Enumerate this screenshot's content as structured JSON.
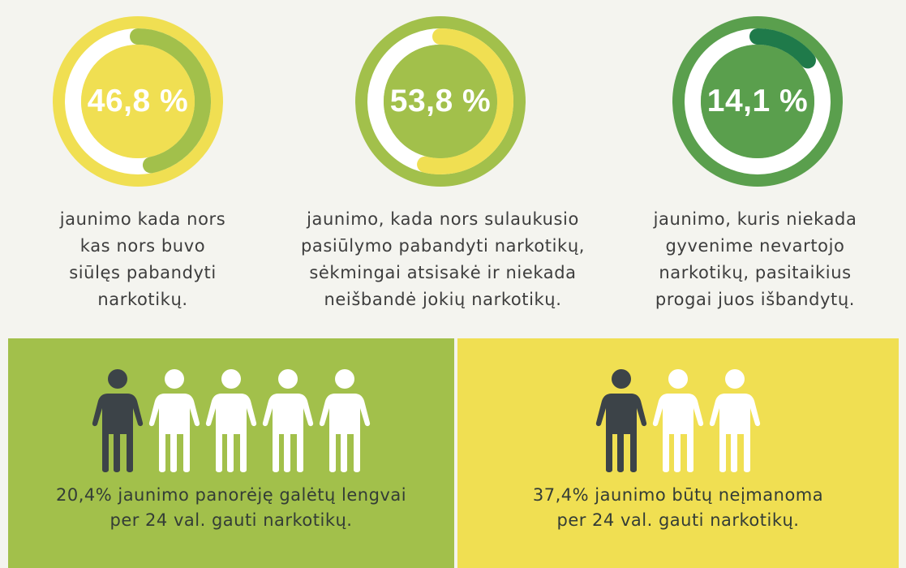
{
  "stats": [
    {
      "value": "46,8 %",
      "percent": 46.8,
      "ring_color": "#f0df52",
      "inner_color": "#f0df52",
      "arc_color": "#a2c04b",
      "caption": [
        "jaunimo kada nors",
        "kas nors buvo",
        "siūlęs pabandyti",
        "narkotikų."
      ]
    },
    {
      "value": "53,8 %",
      "percent": 53.8,
      "ring_color": "#a2c04b",
      "inner_color": "#a2c04b",
      "arc_color": "#f0df52",
      "caption": [
        "jaunimo, kada nors sulaukusio",
        "pasiūlymo pabandyti narkotikų,",
        "sėkmingai atsisakė ir niekada",
        "neišbandė jokių narkotikų."
      ]
    },
    {
      "value": "14,1 %",
      "percent": 14.1,
      "ring_color": "#5a9f4d",
      "inner_color": "#5a9f4d",
      "arc_color": "#1f7a4a",
      "caption": [
        "jaunimo, kuris niekada",
        "gyvenime nevartojo",
        "narkotikų, pasitaikius",
        "progai juos išbandytų."
      ]
    }
  ],
  "panels": [
    {
      "background": "#a2c04b",
      "people_total": 5,
      "people_highlighted": 1,
      "text": [
        "20,4% jaunimo panorėję galėtų lengvai",
        "per 24 val. gauti narkotikų."
      ]
    },
    {
      "background": "#f0df52",
      "people_total": 3,
      "people_highlighted": 1,
      "text": [
        "37,4% jaunimo būtų neįmanoma",
        "per 24 val. gauti narkotikų."
      ]
    }
  ],
  "icons": {
    "person": "person-icon"
  },
  "colors": {
    "person_dark": "#3c4348",
    "person_light": "#ffffff"
  }
}
